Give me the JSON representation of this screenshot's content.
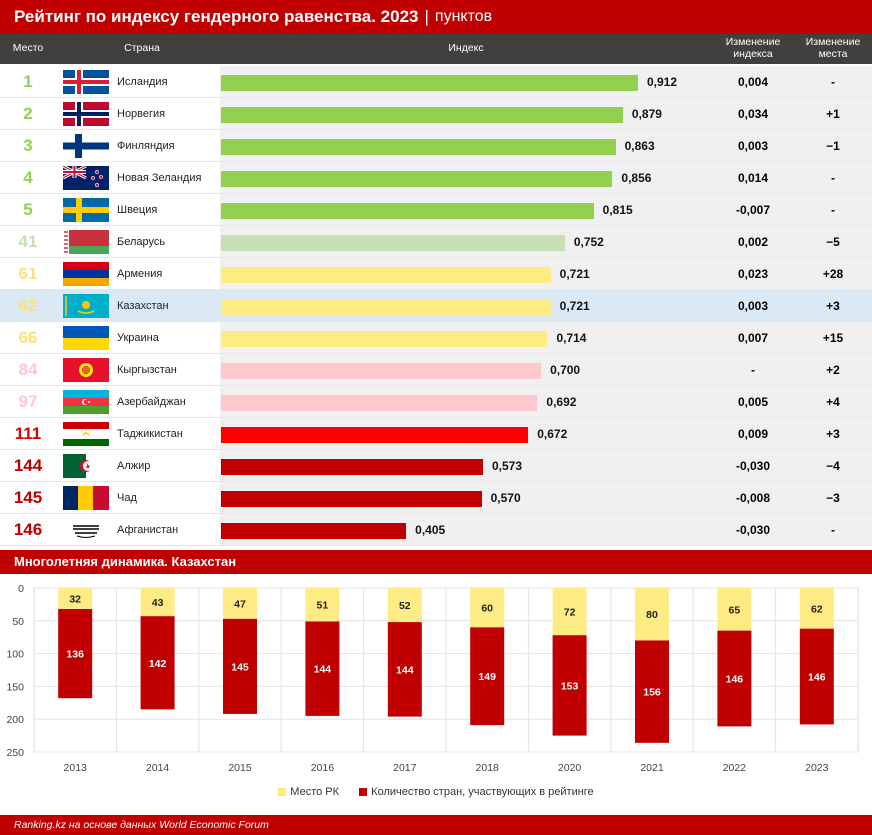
{
  "title": "Рейтинг по индексу гендерного равенства. 2023",
  "unit": "пунктов",
  "headers": {
    "rank": "Место",
    "country": "Страна",
    "index": "Индекс",
    "index_change": "Изменение индекса",
    "rank_change": "Изменение места"
  },
  "rows": [
    {
      "rank": "1",
      "country": "Исландия",
      "index": "0,912",
      "index_change": "0,004",
      "rank_change": "-",
      "color": "#92d050",
      "rank_color": "#92d050",
      "flag": "iceland"
    },
    {
      "rank": "2",
      "country": "Норвегия",
      "index": "0,879",
      "index_change": "0,034",
      "rank_change": "+1",
      "color": "#92d050",
      "rank_color": "#92d050",
      "flag": "norway"
    },
    {
      "rank": "3",
      "country": "Финляндия",
      "index": "0,863",
      "index_change": "0,003",
      "rank_change": "−1",
      "color": "#92d050",
      "rank_color": "#92d050",
      "flag": "finland"
    },
    {
      "rank": "4",
      "country": "Новая Зеландия",
      "index": "0,856",
      "index_change": "0,014",
      "rank_change": "-",
      "color": "#92d050",
      "rank_color": "#92d050",
      "flag": "newzealand"
    },
    {
      "rank": "5",
      "country": "Швеция",
      "index": "0,815",
      "index_change": "-0,007",
      "rank_change": "-",
      "color": "#92d050",
      "rank_color": "#92d050",
      "flag": "sweden"
    },
    {
      "rank": "41",
      "country": "Беларусь",
      "index": "0,752",
      "index_change": "0,002",
      "rank_change": "−5",
      "color": "#c6e0b4",
      "rank_color": "#c6e0b4",
      "flag": "belarus"
    },
    {
      "rank": "61",
      "country": "Армения",
      "index": "0,721",
      "index_change": "0,023",
      "rank_change": "+28",
      "color": "#ffeb84",
      "rank_color": "#ffe07a",
      "flag": "armenia"
    },
    {
      "rank": "62",
      "country": "Казахстан",
      "index": "0,721",
      "index_change": "0,003",
      "rank_change": "+3",
      "color": "#ffeb84",
      "rank_color": "#ffe07a",
      "flag": "kazakhstan",
      "highlight": true
    },
    {
      "rank": "66",
      "country": "Украина",
      "index": "0,714",
      "index_change": "0,007",
      "rank_change": "+15",
      "color": "#ffeb84",
      "rank_color": "#ffe07a",
      "flag": "ukraine"
    },
    {
      "rank": "84",
      "country": "Кыргызстан",
      "index": "0,700",
      "index_change": "-",
      "rank_change": "+2",
      "color": "#ffc7ce",
      "rank_color": "#ffc7ce",
      "flag": "kyrgyzstan"
    },
    {
      "rank": "97",
      "country": "Азербайджан",
      "index": "0,692",
      "index_change": "0,005",
      "rank_change": "+4",
      "color": "#ffc7ce",
      "rank_color": "#ffc7ce",
      "flag": "azerbaijan"
    },
    {
      "rank": "111",
      "country": "Таджикистан",
      "index": "0,672",
      "index_change": "0,009",
      "rank_change": "+3",
      "color": "#ff0000",
      "rank_color": "#e00000",
      "flag": "tajikistan"
    },
    {
      "rank": "144",
      "country": "Алжир",
      "index": "0,573",
      "index_change": "-0,030",
      "rank_change": "−4",
      "color": "#c00000",
      "rank_color": "#c00000",
      "flag": "algeria"
    },
    {
      "rank": "145",
      "country": "Чад",
      "index": "0,570",
      "index_change": "-0,008",
      "rank_change": "−3",
      "color": "#c00000",
      "rank_color": "#c00000",
      "flag": "chad"
    },
    {
      "rank": "146",
      "country": "Афганистан",
      "index": "0,405",
      "index_change": "-0,030",
      "rank_change": "-",
      "color": "#c00000",
      "rank_color": "#c00000",
      "flag": "afghanistan"
    }
  ],
  "section2_title": "Многолетняя динамика. Казахстан",
  "chart_data": [
    {
      "type": "bar",
      "categories": [
        "Исландия",
        "Норвегия",
        "Финляндия",
        "Новая Зеландия",
        "Швеция",
        "Беларусь",
        "Армения",
        "Казахстан",
        "Украина",
        "Кыргызстан",
        "Азербайджан",
        "Таджикистан",
        "Алжир",
        "Чад",
        "Афганистан"
      ],
      "values": [
        0.912,
        0.879,
        0.863,
        0.856,
        0.815,
        0.752,
        0.721,
        0.721,
        0.714,
        0.7,
        0.692,
        0.672,
        0.573,
        0.57,
        0.405
      ],
      "orientation": "horizontal",
      "ylabel": "Индекс"
    },
    {
      "type": "bar",
      "stacked": true,
      "categories": [
        "2013",
        "2014",
        "2015",
        "2016",
        "2017",
        "2018",
        "2020",
        "2021",
        "2022",
        "2023"
      ],
      "series": [
        {
          "name": "Место РК",
          "values": [
            32,
            43,
            47,
            51,
            52,
            60,
            72,
            80,
            65,
            62
          ],
          "color": "#ffeb84"
        },
        {
          "name": "Количество стран, участвующих в рейтинге",
          "values": [
            136,
            142,
            145,
            144,
            144,
            149,
            153,
            156,
            146,
            146
          ],
          "color": "#c00000"
        }
      ],
      "ylim": [
        0,
        250
      ],
      "yticks": [
        0,
        50,
        100,
        150,
        200,
        250
      ],
      "y_inverted": true,
      "grid": true,
      "legend": "bottom"
    }
  ],
  "source": "Ranking.kz на основе данных World Economic Forum"
}
